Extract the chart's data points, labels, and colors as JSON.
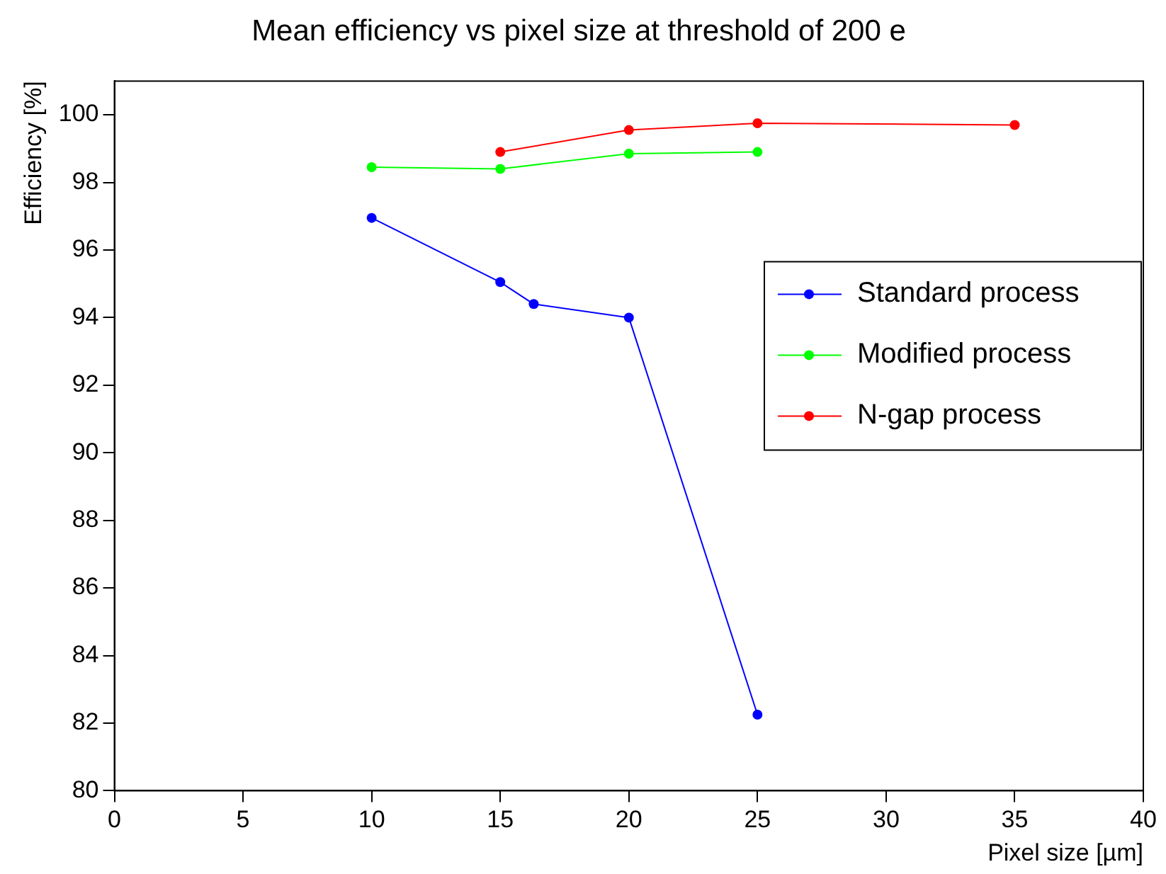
{
  "chart_data": {
    "type": "line",
    "title": "Mean efficiency vs pixel size at threshold of 200 e",
    "xlabel": "Pixel size [µm]",
    "ylabel": "Efficiency [%]",
    "xlim": [
      0,
      40
    ],
    "xticks": [
      0,
      5,
      10,
      15,
      20,
      25,
      30,
      35,
      40
    ],
    "ylim": [
      80,
      101
    ],
    "yticks": [
      80,
      82,
      84,
      86,
      88,
      90,
      92,
      94,
      96,
      98,
      100
    ],
    "grid": false,
    "legend": "right",
    "marker": "circle",
    "line_style": "solid",
    "series": [
      {
        "name": "Standard process",
        "color": "#0000ff",
        "x": [
          10,
          15,
          16.3,
          20,
          25
        ],
        "values": [
          96.95,
          95.05,
          94.4,
          94.0,
          82.25
        ]
      },
      {
        "name": "Modified process",
        "color": "#00ff00",
        "x": [
          10,
          15,
          20,
          25
        ],
        "values": [
          98.45,
          98.4,
          98.85,
          98.9
        ]
      },
      {
        "name": "N-gap process",
        "color": "#ff0000",
        "x": [
          15,
          20,
          25,
          35
        ],
        "values": [
          98.9,
          99.55,
          99.75,
          99.7
        ]
      }
    ]
  }
}
